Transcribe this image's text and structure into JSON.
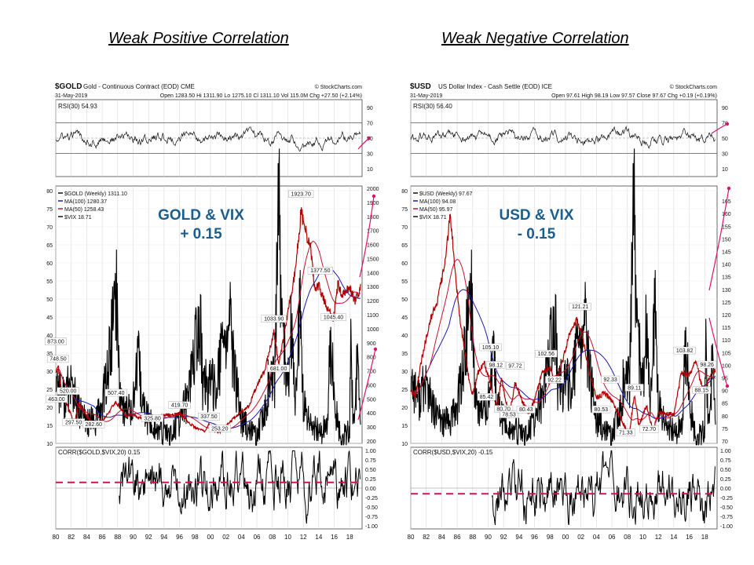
{
  "headings": {
    "left": "Weak Positive Correlation",
    "right": "Weak Negative Correlation"
  },
  "colors": {
    "price": "#b00000",
    "ma100": "#1a1ab5",
    "ma50": "#c8102e",
    "vix": "#000000",
    "annotation": "#1a5e8f",
    "dashed": "#d0105a",
    "arrow": "#e0106a"
  },
  "chart_data": [
    {
      "type": "line",
      "id": "gold",
      "header": {
        "symbol": "$GOLD",
        "description": "Gold - Continuous Contract (EOD) CME",
        "date": "31-May-2019",
        "quote": "Open 1283.50  Hi 1311.90  Lo 1275.10  Cl 1311.10  Vol 115.0M  Chg +27.50 (+2.14%)",
        "watermark": "© StockCharts.com"
      },
      "rsi": {
        "label": "RSI(30) 54.93",
        "ticks": [
          "90",
          "70",
          "50",
          "30",
          "10"
        ]
      },
      "legend": [
        "$GOLD (Weekly) 1311.10",
        "MA(100) 1280.37",
        "MA(50) 1258.43",
        "$VIX 18.71"
      ],
      "annotation": [
        "GOLD & VIX",
        "+ 0.15"
      ],
      "left_axis": {
        "range": [
          10,
          80
        ],
        "ticks": [
          "80",
          "75",
          "70",
          "65",
          "60",
          "55",
          "50",
          "45",
          "40",
          "35",
          "30",
          "25",
          "20",
          "15",
          "10"
        ]
      },
      "right_axis": {
        "range": [
          200,
          2000
        ],
        "ticks": [
          "2000",
          "1900",
          "1800",
          "1700",
          "1600",
          "1500",
          "1400",
          "1300",
          "1200",
          "1100",
          "1000",
          "900",
          "800",
          "700",
          "600",
          "500",
          "400",
          "300",
          "200"
        ]
      },
      "point_labels": [
        {
          "text": "873.00",
          "x": 1980.0,
          "y": 873
        },
        {
          "text": "748.50",
          "x": 1980.3,
          "y": 748.5
        },
        {
          "text": "463.00",
          "x": 1980.1,
          "y": 463
        },
        {
          "text": "520.00",
          "x": 1981.6,
          "y": 520
        },
        {
          "text": "297.50",
          "x": 1982.3,
          "y": 297.5
        },
        {
          "text": "282.60",
          "x": 1984.9,
          "y": 282.6
        },
        {
          "text": "507.40",
          "x": 1987.8,
          "y": 507.4
        },
        {
          "text": "419.70",
          "x": 1996.0,
          "y": 419.7
        },
        {
          "text": "325.80",
          "x": 1992.5,
          "y": 325.8
        },
        {
          "text": "337.50",
          "x": 1999.8,
          "y": 337.5
        },
        {
          "text": "253.20",
          "x": 2001.2,
          "y": 253.2
        },
        {
          "text": "681.00",
          "x": 2008.8,
          "y": 681
        },
        {
          "text": "1033.90",
          "x": 2008.2,
          "y": 1033.9
        },
        {
          "text": "1923.70",
          "x": 2011.7,
          "y": 1923.7
        },
        {
          "text": "1377.50",
          "x": 2014.2,
          "y": 1377.5
        },
        {
          "text": "1045.40",
          "x": 2015.9,
          "y": 1045.4
        }
      ],
      "correlation": {
        "label": "CORR($GOLD,$VIX,20) 0.15",
        "value": 0.15,
        "ticks": [
          "1.00",
          "0.75",
          "0.50",
          "0.25",
          "0.00",
          "-0.25",
          "-0.50",
          "-0.75",
          "-1.00"
        ]
      },
      "x_ticks": [
        "80",
        "82",
        "84",
        "86",
        "88",
        "90",
        "92",
        "94",
        "96",
        "98",
        "00",
        "02",
        "04",
        "06",
        "08",
        "10",
        "12",
        "14",
        "16",
        "18"
      ]
    },
    {
      "type": "line",
      "id": "usd",
      "header": {
        "symbol": "$USD",
        "description": "US Dollar Index - Cash Settle (EOD) ICE",
        "date": "31-May-2019",
        "quote": "Open 97.61  High 98.19  Low 97.57  Close 97.67  Chg +0.19 (+0.19%)",
        "watermark": "© StockCharts.com"
      },
      "rsi": {
        "label": "RSI(30) 56.40",
        "ticks": [
          "90",
          "70",
          "50",
          "30",
          "10"
        ]
      },
      "legend": [
        "$USD (Weekly) 97.67",
        "MA(100) 94.08",
        "MA(50) 95.97",
        "$VIX 18.71"
      ],
      "annotation": [
        "USD & VIX",
        "- 0.15"
      ],
      "left_axis": {
        "range": [
          10,
          80
        ],
        "ticks": [
          "80",
          "75",
          "70",
          "65",
          "60",
          "55",
          "50",
          "45",
          "40",
          "35",
          "30",
          "25",
          "20",
          "15",
          "10"
        ]
      },
      "right_axis": {
        "range": [
          70,
          170
        ],
        "ticks": [
          "165",
          "160",
          "155",
          "150",
          "145",
          "140",
          "135",
          "130",
          "125",
          "120",
          "115",
          "110",
          "105",
          "100",
          "95",
          "90",
          "85",
          "80",
          "75",
          "70"
        ]
      },
      "point_labels": [
        {
          "text": "105.10",
          "x": 1990.3,
          "y": 105.1
        },
        {
          "text": "98.12",
          "x": 1991.0,
          "y": 98.12
        },
        {
          "text": "97.72",
          "x": 1993.5,
          "y": 97.72
        },
        {
          "text": "85.42",
          "x": 1989.8,
          "y": 85.42
        },
        {
          "text": "80.70",
          "x": 1992.0,
          "y": 80.7
        },
        {
          "text": "78.53",
          "x": 1992.7,
          "y": 78.53
        },
        {
          "text": "80.43",
          "x": 1994.9,
          "y": 80.43
        },
        {
          "text": "102.56",
          "x": 1997.5,
          "y": 102.56
        },
        {
          "text": "92.22",
          "x": 1998.6,
          "y": 92.22
        },
        {
          "text": "121.21",
          "x": 2001.9,
          "y": 121.21
        },
        {
          "text": "92.33",
          "x": 2005.8,
          "y": 92.33
        },
        {
          "text": "80.53",
          "x": 2004.6,
          "y": 80.53
        },
        {
          "text": "71.33",
          "x": 2007.8,
          "y": 71.33
        },
        {
          "text": "89.11",
          "x": 2008.9,
          "y": 89.11
        },
        {
          "text": "72.70",
          "x": 2010.8,
          "y": 72.7
        },
        {
          "text": "103.82",
          "x": 2015.4,
          "y": 103.82
        },
        {
          "text": "98.26",
          "x": 2018.3,
          "y": 98.26
        },
        {
          "text": "88.15",
          "x": 2017.6,
          "y": 88.15
        }
      ],
      "correlation": {
        "label": "CORR($USD,$VIX,20) -0.15",
        "value": -0.15,
        "ticks": [
          "1.00",
          "0.75",
          "0.50",
          "0.25",
          "0.00",
          "-0.25",
          "-0.50",
          "-0.75",
          "-1.00"
        ]
      },
      "x_ticks": [
        "80",
        "82",
        "84",
        "86",
        "88",
        "90",
        "92",
        "94",
        "96",
        "98",
        "00",
        "02",
        "04",
        "06",
        "08",
        "10",
        "12",
        "14",
        "16",
        "18"
      ]
    }
  ]
}
